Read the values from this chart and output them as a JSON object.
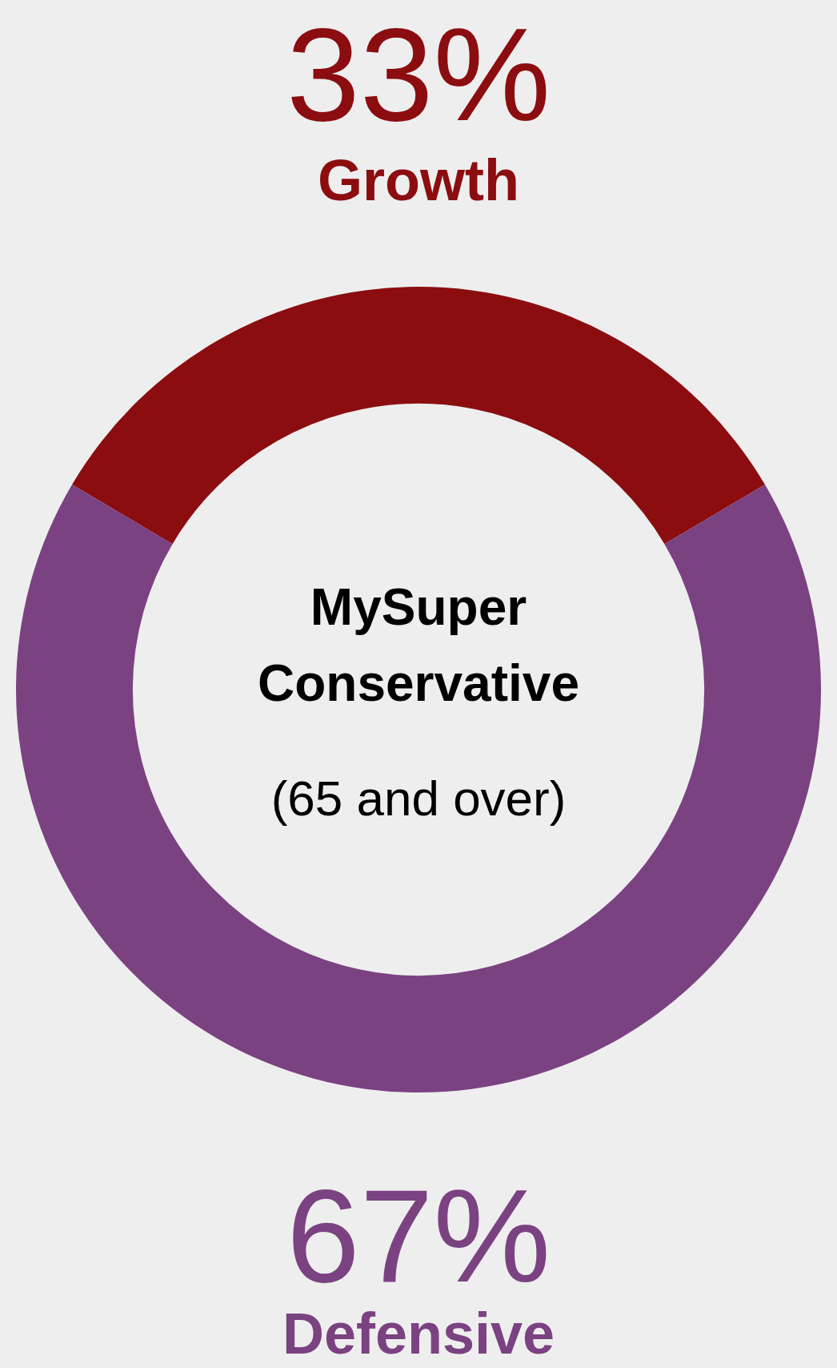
{
  "chart_data": {
    "type": "donut",
    "title": "MySuper Conservative",
    "subtitle": "(65 and over)",
    "categories": [
      "Growth",
      "Defensive"
    ],
    "values": [
      33,
      67
    ],
    "colors": [
      "#8b0d10",
      "#7b4282"
    ],
    "value_labels": [
      "33%",
      "67%"
    ],
    "legend": false
  }
}
